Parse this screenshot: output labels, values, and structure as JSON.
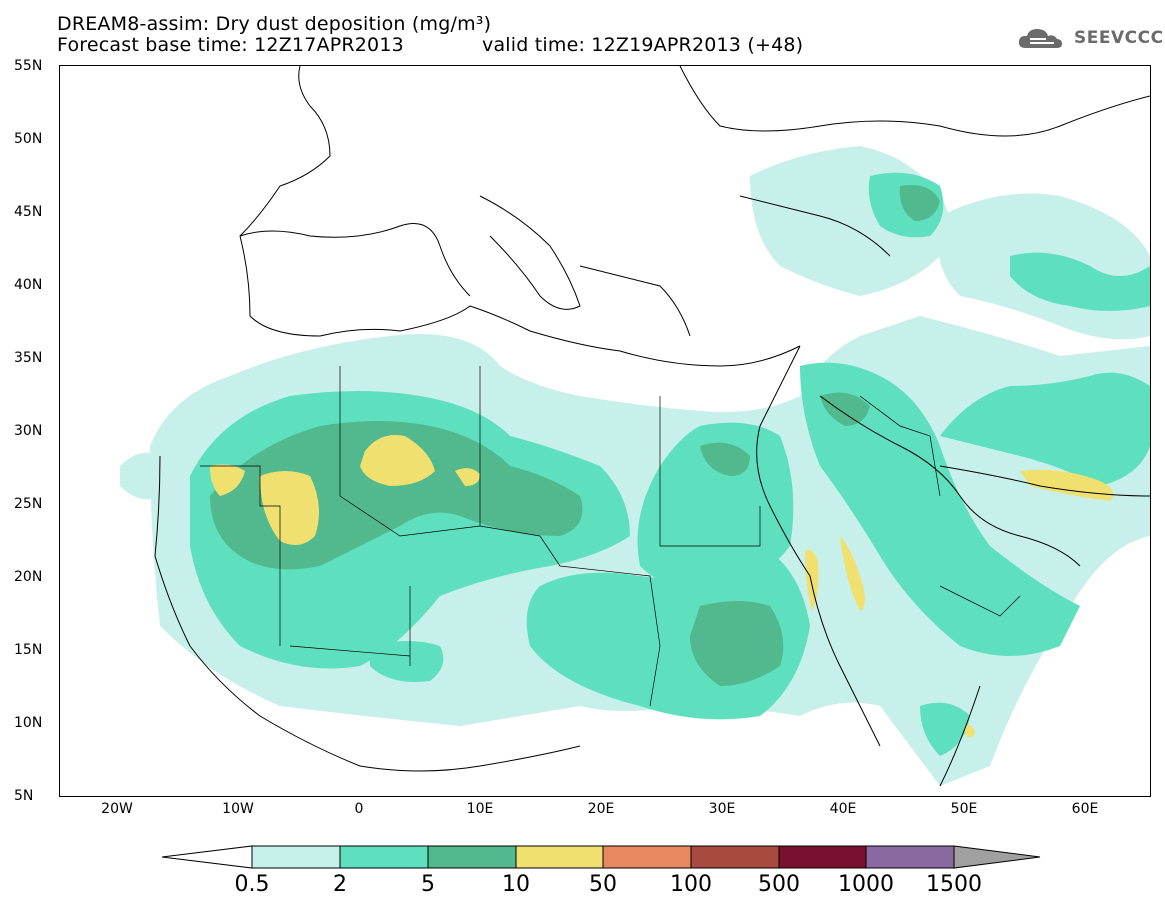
{
  "header": {
    "title_line1": "DREAM8-assim: Dry dust deposition (mg/m³)",
    "title_line2_left": "Forecast base time: 12Z17APR2013",
    "title_line2_right": "valid time: 12Z19APR2013 (+48)",
    "logo_text": "SEEVCCC",
    "logo_icon": "cloud-icon"
  },
  "map": {
    "lat_labels": [
      "55N",
      "50N",
      "45N",
      "40N",
      "35N",
      "30N",
      "25N",
      "20N",
      "15N",
      "10N",
      "5N"
    ],
    "lon_labels": [
      "20W",
      "10W",
      "0",
      "10E",
      "20E",
      "30E",
      "40E",
      "50E",
      "60E"
    ],
    "lon_range": [
      -25,
      65
    ],
    "lat_range": [
      5,
      55
    ]
  },
  "colorbar": {
    "levels": [
      "0.5",
      "2",
      "5",
      "10",
      "50",
      "100",
      "500",
      "1000",
      "1500"
    ],
    "colors": [
      "#c8f0ea",
      "#5ee0be",
      "#52b88e",
      "#f0e070",
      "#e88860",
      "#a84a3e",
      "#7a1030",
      "#8a68a0",
      "#a0a0a0"
    ]
  }
}
